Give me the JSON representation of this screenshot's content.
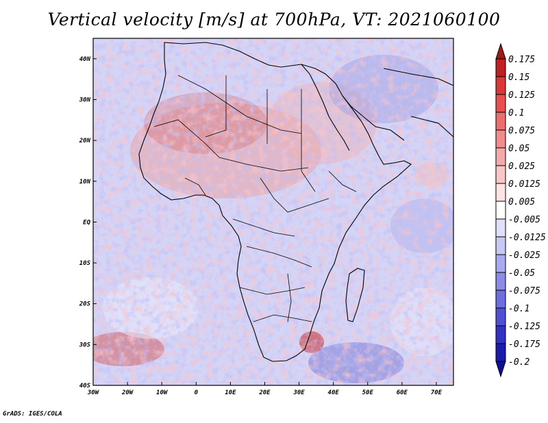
{
  "map": {
    "title": "Vertical velocity [m/s] at 700hPa, VT: 2021060100",
    "credit": "GrADS: IGES/COLA",
    "variable": "Vertical velocity",
    "units": "m/s",
    "level": "700hPa",
    "valid_time": "2021060100",
    "lon_range": [
      -30,
      75
    ],
    "lat_range": [
      -40,
      45
    ],
    "lat_labels": [
      "40N",
      "30N",
      "20N",
      "10N",
      "EQ",
      "10S",
      "20S",
      "30S",
      "40S"
    ],
    "lon_labels": [
      "30W",
      "20W",
      "10W",
      "0",
      "10E",
      "20E",
      "30E",
      "40E",
      "50E",
      "60E",
      "70E"
    ],
    "region": "Africa and surrounding oceans"
  },
  "colorbar": {
    "levels": [
      "0.175",
      "0.15",
      "0.125",
      "0.1",
      "0.075",
      "0.05",
      "0.025",
      "0.0125",
      "0.005",
      "-0.005",
      "-0.0125",
      "-0.025",
      "-0.05",
      "-0.075",
      "-0.1",
      "-0.125",
      "-0.175",
      "-0.2"
    ],
    "colors": [
      "#a01818",
      "#c02020",
      "#d83838",
      "#e65050",
      "#ec6e6e",
      "#f08c8c",
      "#f4aaaa",
      "#f8c8c8",
      "#fce4e4",
      "#ffffff",
      "#e0e0fa",
      "#c8c8f4",
      "#aaaaee",
      "#8c8ce8",
      "#6e6ee0",
      "#5050d4",
      "#3232c4",
      "#1c1cac",
      "#0e0e96"
    ]
  }
}
